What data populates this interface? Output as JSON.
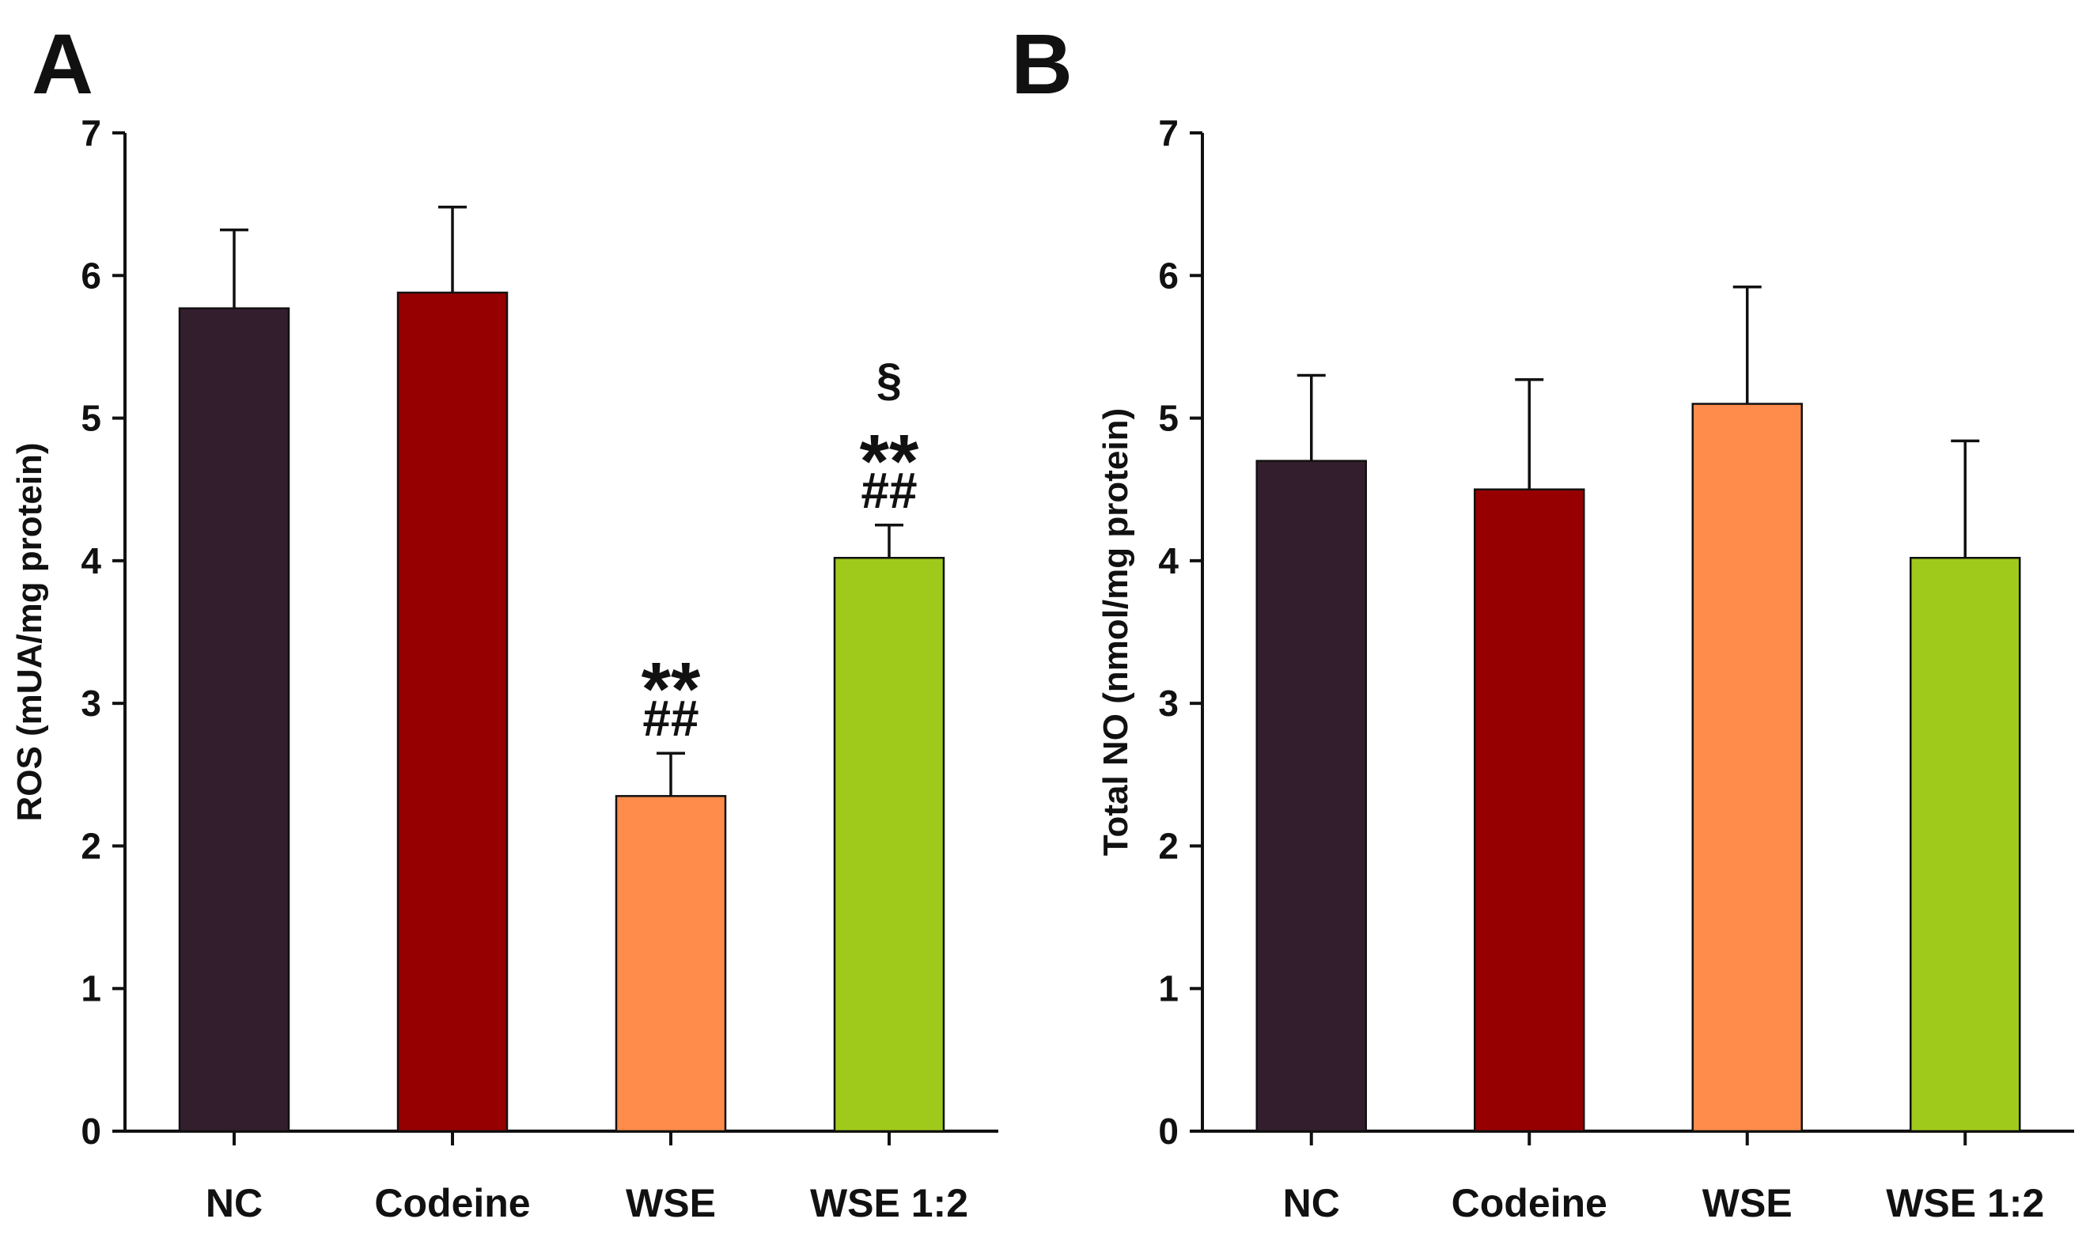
{
  "chart_data": [
    {
      "panel_label": "A",
      "type": "bar",
      "categories": [
        "NC",
        "Codeine",
        "WSE",
        "WSE 1:2"
      ],
      "values": [
        5.77,
        5.88,
        2.35,
        4.02
      ],
      "errors": [
        0.55,
        0.6,
        0.3,
        0.23
      ],
      "colors": [
        "#331E2E",
        "#960000",
        "#FF8C4B",
        "#9FCA1C"
      ],
      "ylabel": "ROS (mUA/mg protein)",
      "xlabel": "",
      "ylim": [
        0,
        7
      ],
      "yticks": [
        "0",
        "1",
        "2",
        "3",
        "4",
        "5",
        "6",
        "7"
      ],
      "annotations": [
        {
          "category": "WSE",
          "lines": [
            "**",
            "##"
          ]
        },
        {
          "category": "WSE 1:2",
          "lines": [
            "§",
            "**",
            "##"
          ]
        }
      ]
    },
    {
      "panel_label": "B",
      "type": "bar",
      "categories": [
        "NC",
        "Codeine",
        "WSE",
        "WSE 1:2"
      ],
      "values": [
        4.7,
        4.5,
        5.1,
        4.02
      ],
      "errors": [
        0.6,
        0.77,
        0.82,
        0.82
      ],
      "colors": [
        "#331E2E",
        "#960000",
        "#FF8C4B",
        "#9FCA1C"
      ],
      "ylabel": "Total NO (nmol/mg protein)",
      "xlabel": "",
      "ylim": [
        0,
        7
      ],
      "yticks": [
        "0",
        "1",
        "2",
        "3",
        "4",
        "5",
        "6",
        "7"
      ],
      "annotations": []
    }
  ]
}
